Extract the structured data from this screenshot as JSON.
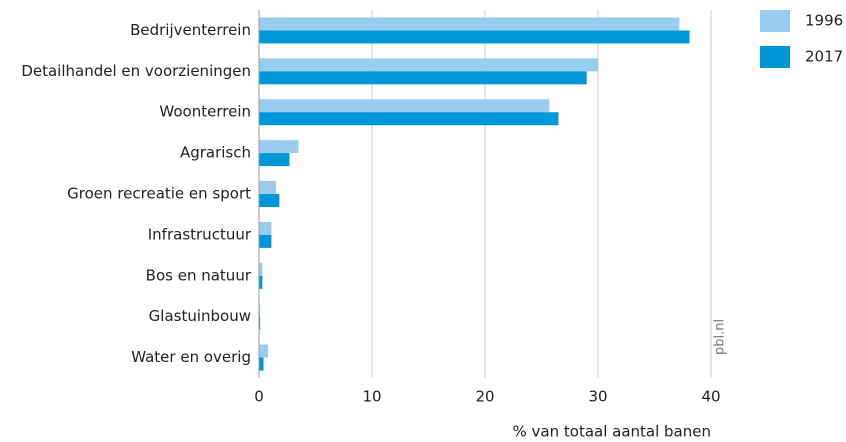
{
  "chart_data": {
    "type": "hbar",
    "categories": [
      "Bedrijventerrein",
      "Detailhandel en voorzieningen",
      "Woonterrein",
      "Agrarisch",
      "Groen recreatie en sport",
      "Infrastructuur",
      "Bos en natuur",
      "Glastuinbouw",
      "Water en overig"
    ],
    "series": [
      {
        "name": "1996",
        "color": "#99cdf0",
        "values": [
          37.2,
          30.0,
          25.7,
          3.5,
          1.5,
          1.1,
          0.3,
          0.1,
          0.8
        ]
      },
      {
        "name": "2017",
        "color": "#0097d9",
        "values": [
          38.1,
          29.0,
          26.5,
          2.7,
          1.8,
          1.1,
          0.3,
          0.1,
          0.4
        ]
      }
    ],
    "xlim": [
      0,
      40
    ],
    "xticks": [
      0,
      10,
      20,
      30,
      40
    ],
    "grid": true,
    "xlabel": "% van totaal aantal banen",
    "source": "pbl.nl",
    "legend": "top-right"
  }
}
